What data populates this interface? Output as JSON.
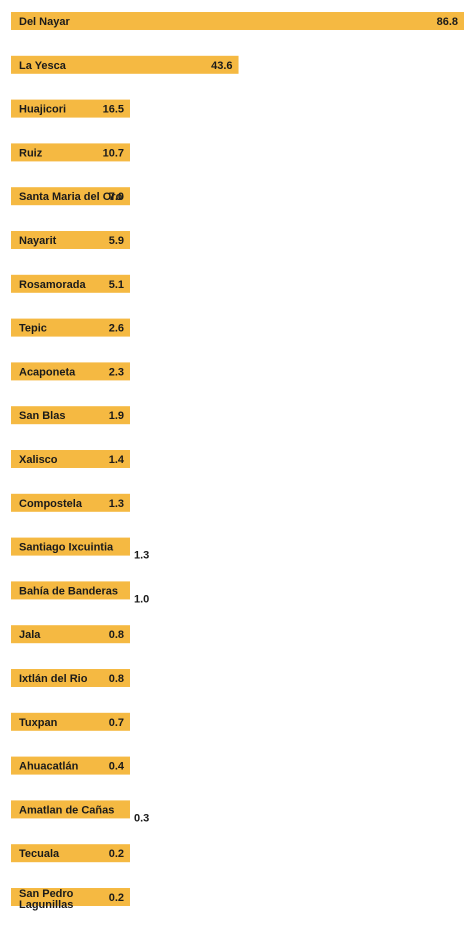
{
  "chart_data": {
    "type": "bar",
    "orientation": "horizontal",
    "bar_color": "#F5B942",
    "title": "",
    "xlabel": "",
    "ylabel": "",
    "grid": false,
    "categories": [
      "Del Nayar",
      "La Yesca",
      "Huajicori",
      "Ruiz",
      "Santa Maria del Oro",
      "Nayarit",
      "Rosamorada",
      "Tepic",
      "Acaponeta",
      "San Blas",
      "Xalisco",
      "Compostela",
      "Santiago Ixcuintia",
      "Bahía de Banderas",
      "Jala",
      "Ixtlán del Rio",
      "Tuxpan",
      "Ahuacatlán",
      "Amatlan de Cañas",
      "Tecuala",
      "San Pedro Lagunillas"
    ],
    "values": [
      86.8,
      43.6,
      16.5,
      10.7,
      7.0,
      5.9,
      5.1,
      2.6,
      2.3,
      1.9,
      1.4,
      1.3,
      1.3,
      1.0,
      0.8,
      0.8,
      0.7,
      0.4,
      0.3,
      0.2,
      0.2
    ],
    "value_labels": [
      "86.8",
      "43.6",
      "16.5",
      "10.7",
      "7.0",
      "5.9",
      "5.1",
      "2.6",
      "2.3",
      "1.9",
      "1.4",
      "1.3",
      "1.3",
      "1.0",
      "0.8",
      "0.8",
      "0.7",
      "0.4",
      "0.3",
      "0.2",
      "0.2"
    ]
  }
}
